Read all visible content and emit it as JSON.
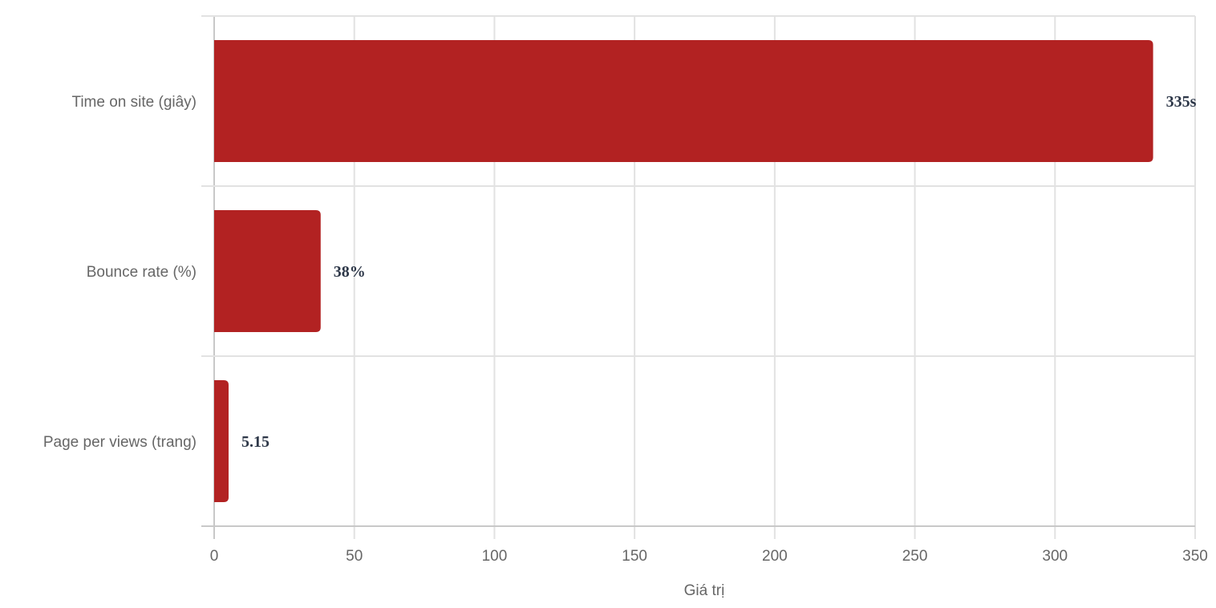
{
  "chart_data": {
    "type": "bar",
    "orientation": "horizontal",
    "title": "",
    "xlabel": "Giá trị",
    "ylabel": "",
    "xlim": [
      0,
      350
    ],
    "xticks": [
      0,
      50,
      100,
      150,
      200,
      250,
      300,
      350
    ],
    "grid": true,
    "categories": [
      "Time on site (giây)",
      "Bounce rate (%)",
      "Page per views (trang)"
    ],
    "values": [
      335,
      38,
      5.15
    ],
    "data_labels": [
      "335s",
      "38%",
      "5.15"
    ],
    "bar_color": "#b22222"
  }
}
